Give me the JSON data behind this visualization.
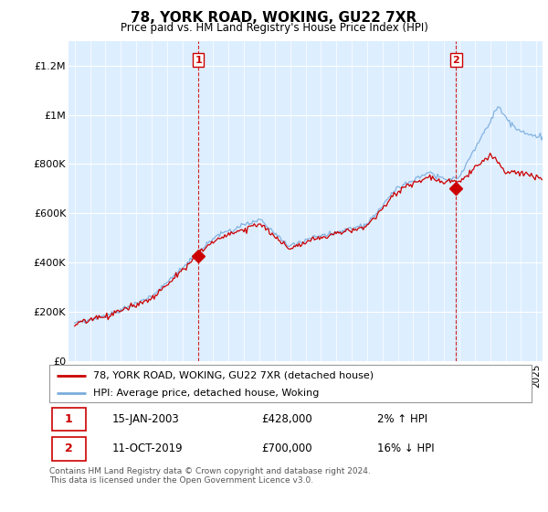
{
  "title": "78, YORK ROAD, WOKING, GU22 7XR",
  "subtitle": "Price paid vs. HM Land Registry's House Price Index (HPI)",
  "legend_line1": "78, YORK ROAD, WOKING, GU22 7XR (detached house)",
  "legend_line2": "HPI: Average price, detached house, Woking",
  "transaction1_date": "15-JAN-2003",
  "transaction1_price": "£428,000",
  "transaction1_hpi": "2% ↑ HPI",
  "transaction2_date": "11-OCT-2019",
  "transaction2_price": "£700,000",
  "transaction2_hpi": "16% ↓ HPI",
  "footer": "Contains HM Land Registry data © Crown copyright and database right 2024.\nThis data is licensed under the Open Government Licence v3.0.",
  "line_color_property": "#cc0000",
  "line_color_hpi": "#7aacdc",
  "vline_color": "#cc0000",
  "background_color": "#ffffff",
  "plot_bg_color": "#ddeeff",
  "ylim": [
    0,
    1300000
  ],
  "yticks": [
    0,
    200000,
    400000,
    600000,
    800000,
    1000000,
    1200000
  ],
  "ytick_labels": [
    "£0",
    "£200K",
    "£400K",
    "£600K",
    "£800K",
    "£1M",
    "£1.2M"
  ],
  "transaction1_x": 2003.04,
  "transaction1_y": 428000,
  "transaction2_x": 2019.79,
  "transaction2_y": 700000,
  "xlim_left": 1994.6,
  "xlim_right": 2025.4
}
